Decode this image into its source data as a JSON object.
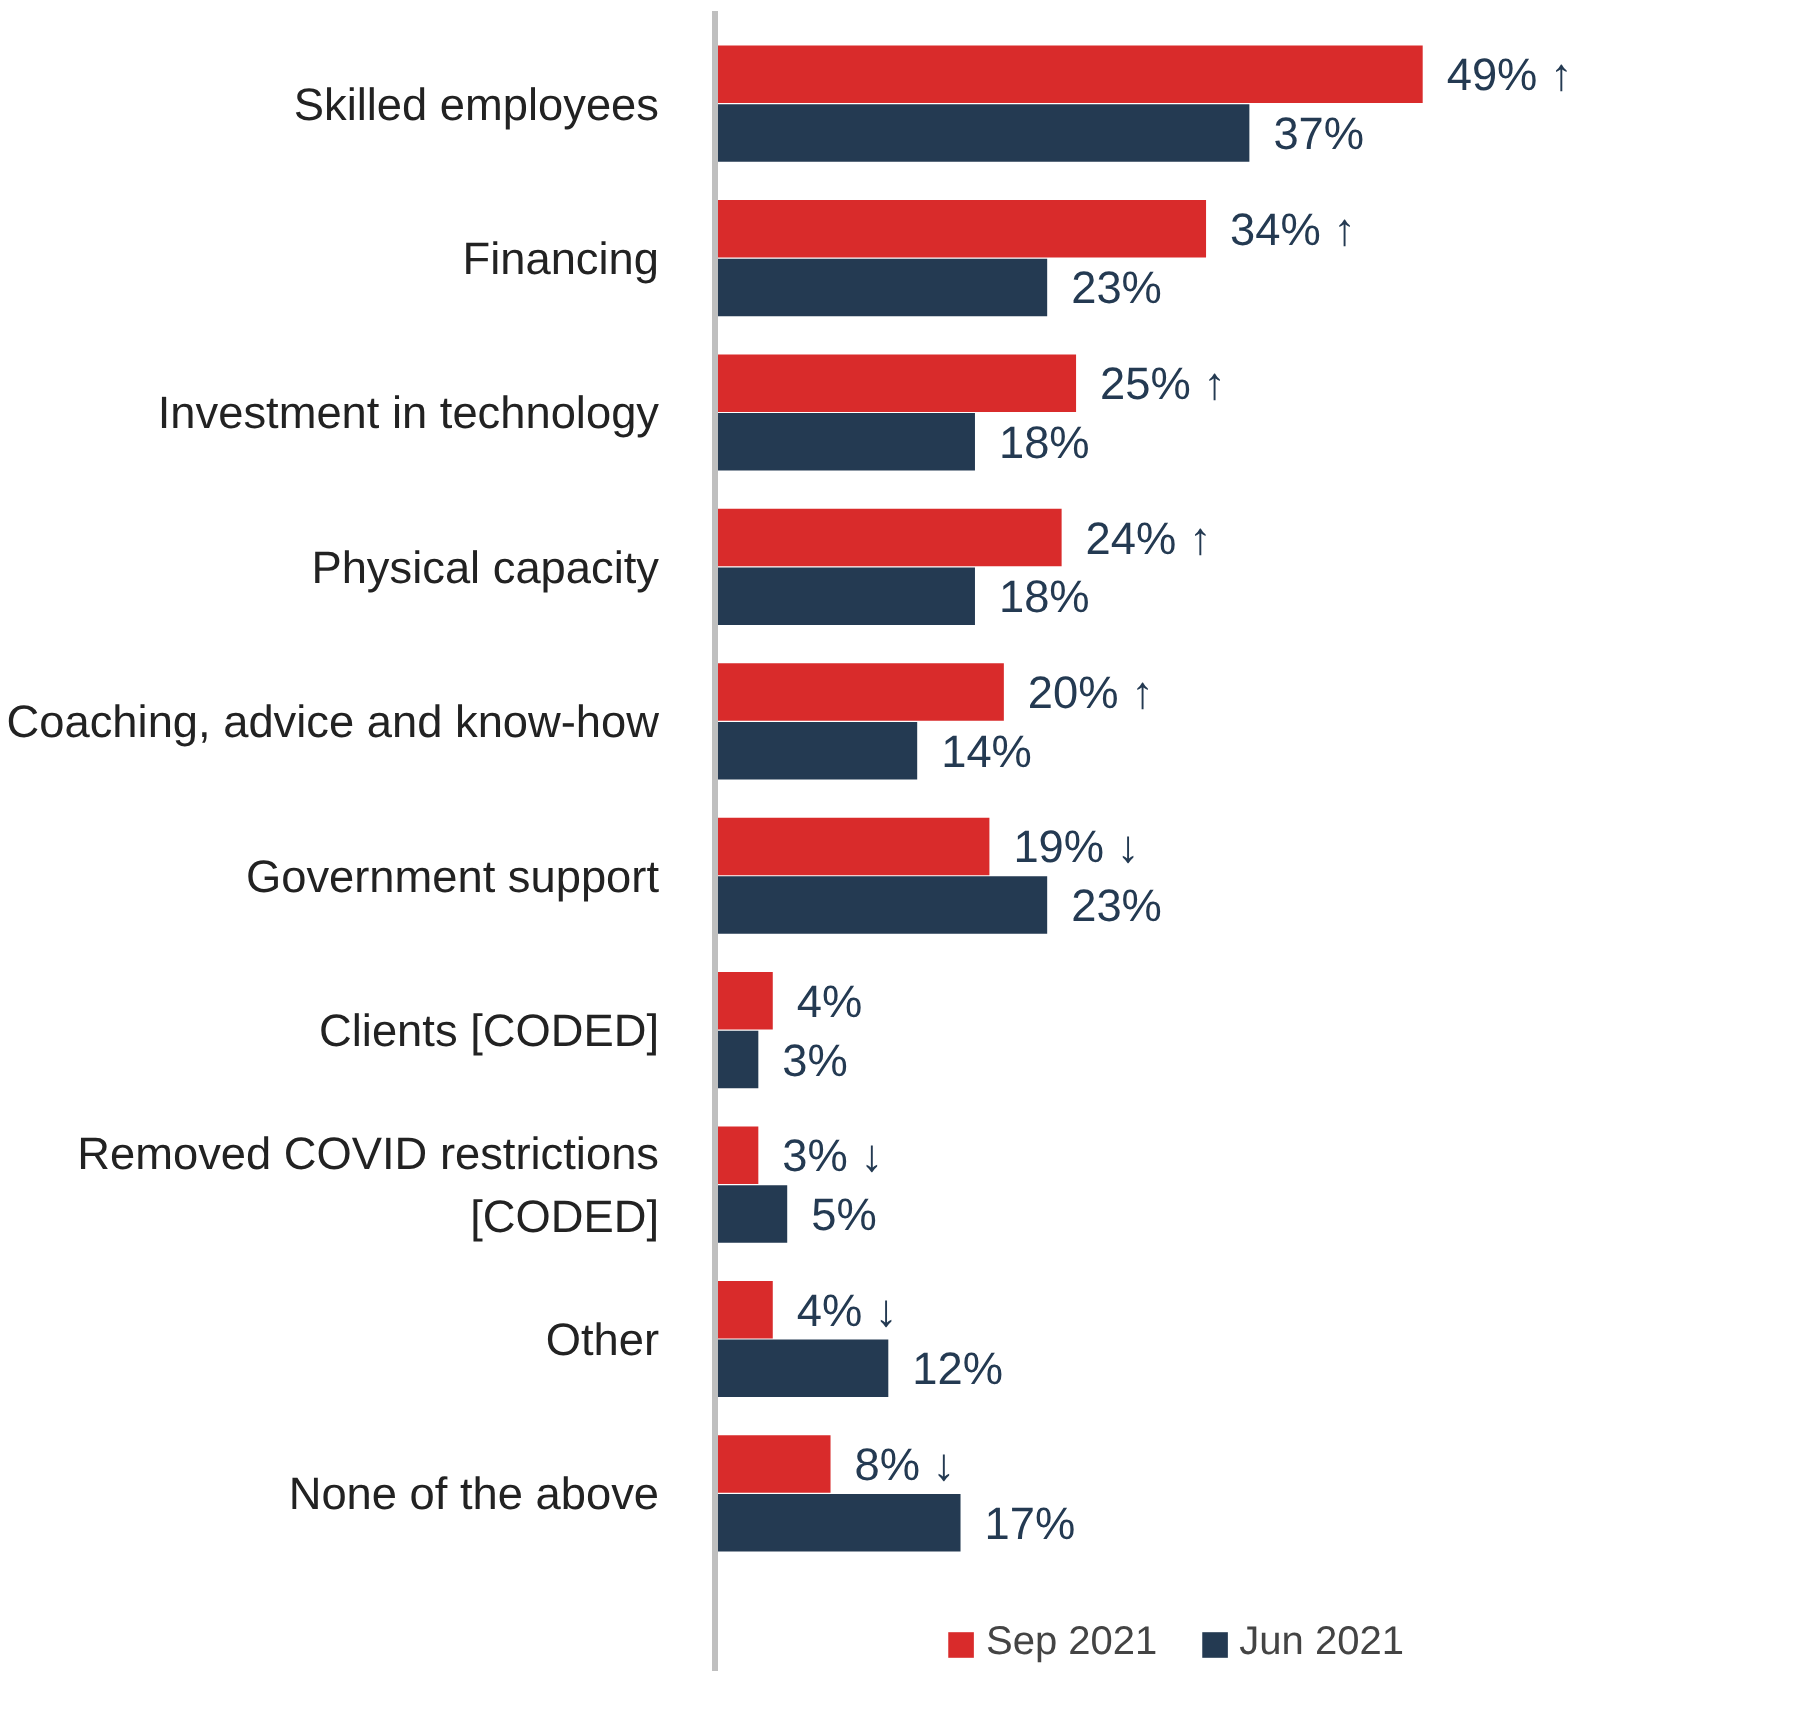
{
  "chart_data": {
    "type": "bar",
    "orientation": "horizontal",
    "categories": [
      "Skilled employees",
      "Financing",
      "Investment in technology",
      "Physical capacity",
      "Coaching, advice and know-how",
      "Government support",
      "Clients [CODED]",
      "Removed COVID restrictions [CODED]",
      "Other",
      "None of the above"
    ],
    "series": [
      {
        "name": "Sep 2021",
        "color": "#d92b2b",
        "values": [
          49,
          34,
          25,
          24,
          20,
          19,
          4,
          3,
          4,
          8
        ],
        "value_labels": [
          "49% ↑",
          "34% ↑",
          "25% ↑",
          "24% ↑",
          "20% ↑",
          "19% ↓",
          "4%",
          "3% ↓",
          "4% ↓",
          "8% ↓"
        ]
      },
      {
        "name": "Jun 2021",
        "color": "#243a52",
        "values": [
          37,
          23,
          18,
          18,
          14,
          23,
          3,
          5,
          12,
          17
        ],
        "value_labels": [
          "37%",
          "23%",
          "18%",
          "18%",
          "14%",
          "23%",
          "3%",
          "5%",
          "12%",
          "17%"
        ]
      }
    ],
    "tick_labels": "y",
    "grid": false,
    "legend": "bottom"
  }
}
